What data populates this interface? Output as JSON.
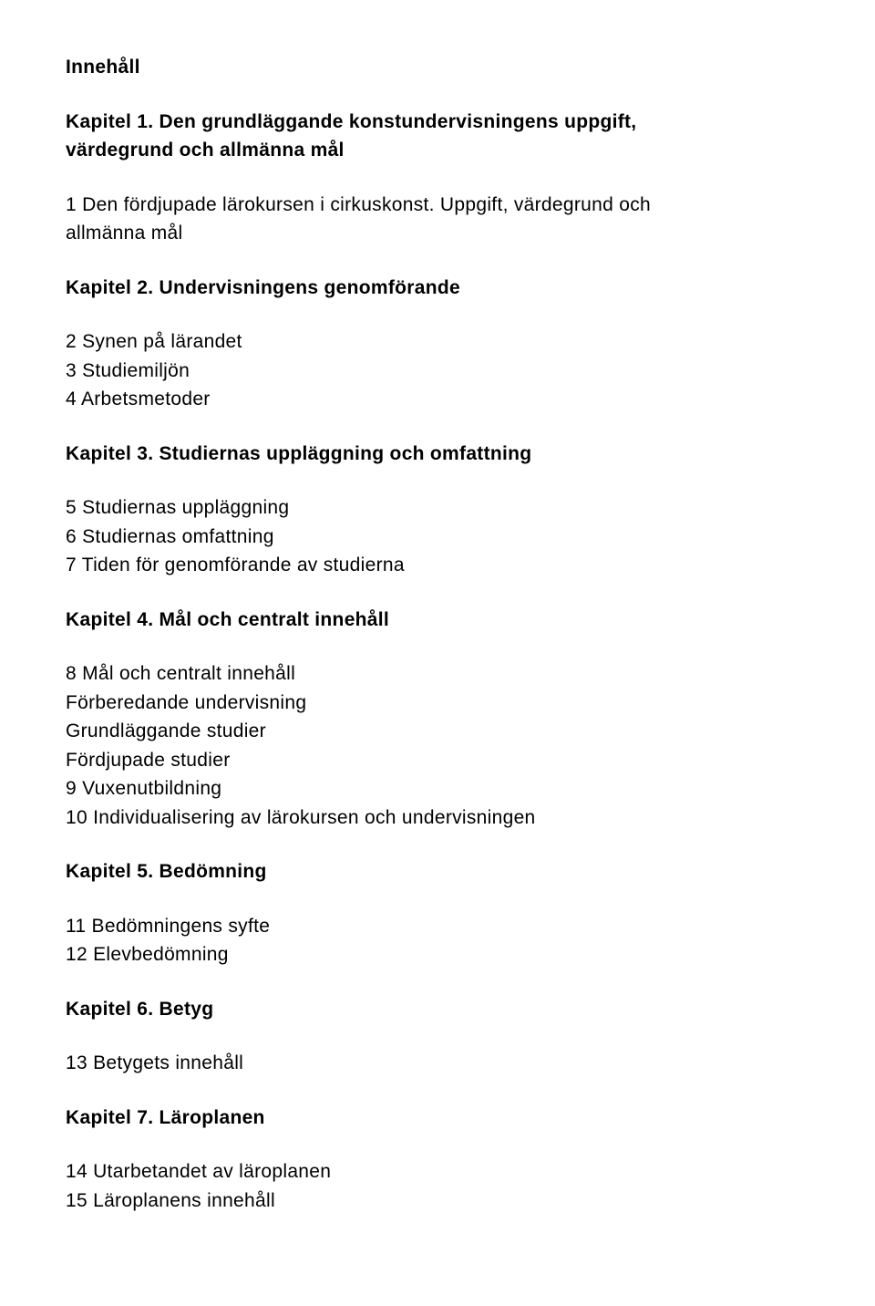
{
  "header": "Innehåll",
  "ch1": {
    "title_line1": "Kapitel 1. Den grundläggande konstundervisningens uppgift,",
    "title_line2": "värdegrund och allmänna mål",
    "item1_line1": "1 Den fördjupade lärokursen i cirkuskonst. Uppgift, värdegrund och",
    "item1_line2": "allmänna mål"
  },
  "ch2": {
    "title": "Kapitel 2. Undervisningens genomförande",
    "i1": "2 Synen på lärandet",
    "i2": "3 Studiemiljön",
    "i3": "4 Arbetsmetoder"
  },
  "ch3": {
    "title": "Kapitel 3. Studiernas uppläggning och omfattning",
    "i1": "5 Studiernas uppläggning",
    "i2": "6 Studiernas omfattning",
    "i3": "7 Tiden för genomförande av studierna"
  },
  "ch4": {
    "title": "Kapitel 4. Mål och centralt innehåll",
    "i1": "8 Mål och centralt innehåll",
    "i2": " Förberedande undervisning",
    "i3": " Grundläggande studier",
    "i4": " Fördjupade studier",
    "i5": "9 Vuxenutbildning",
    "i6": "10 Individualisering av lärokursen och undervisningen"
  },
  "ch5": {
    "title": "Kapitel 5. Bedömning",
    "i1": "11 Bedömningens syfte",
    "i2": "12 Elevbedömning"
  },
  "ch6": {
    "title": "Kapitel 6. Betyg",
    "i1": "13 Betygets innehåll"
  },
  "ch7": {
    "title": "Kapitel 7. Läroplanen",
    "i1": "14 Utarbetandet av läroplanen",
    "i2": "15 Läroplanens innehåll"
  }
}
